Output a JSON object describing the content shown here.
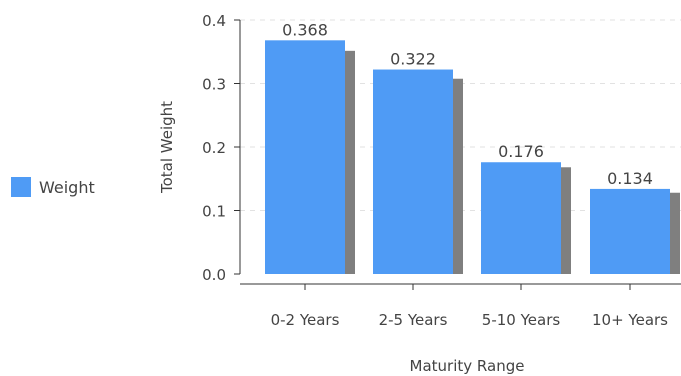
{
  "chart_data": {
    "type": "bar",
    "categories": [
      "0-2 Years",
      "2-5 Years",
      "5-10 Years",
      "10+ Years"
    ],
    "series": [
      {
        "name": "Weight",
        "values": [
          0.368,
          0.322,
          0.176,
          0.134
        ]
      }
    ],
    "data_labels": [
      "0.368",
      "0.322",
      "0.176",
      "0.134"
    ],
    "title": "",
    "xlabel": "Maturity Range",
    "ylabel": "Total Weight",
    "ylim": [
      0,
      0.4
    ],
    "yticks": [
      0.0,
      0.1,
      0.2,
      0.3,
      0.4
    ],
    "ytick_labels": [
      "0.0",
      "0.1",
      "0.2",
      "0.3",
      "0.4"
    ],
    "grid": "horizontal-dashed",
    "legend": {
      "placement": "left",
      "entries": [
        "Weight"
      ]
    },
    "colors": {
      "bar": "#4f9bf5",
      "bar_shadow": "#7f7f7f",
      "text": "#444444",
      "axis": "#333333",
      "grid": "#e2e2e2"
    }
  }
}
